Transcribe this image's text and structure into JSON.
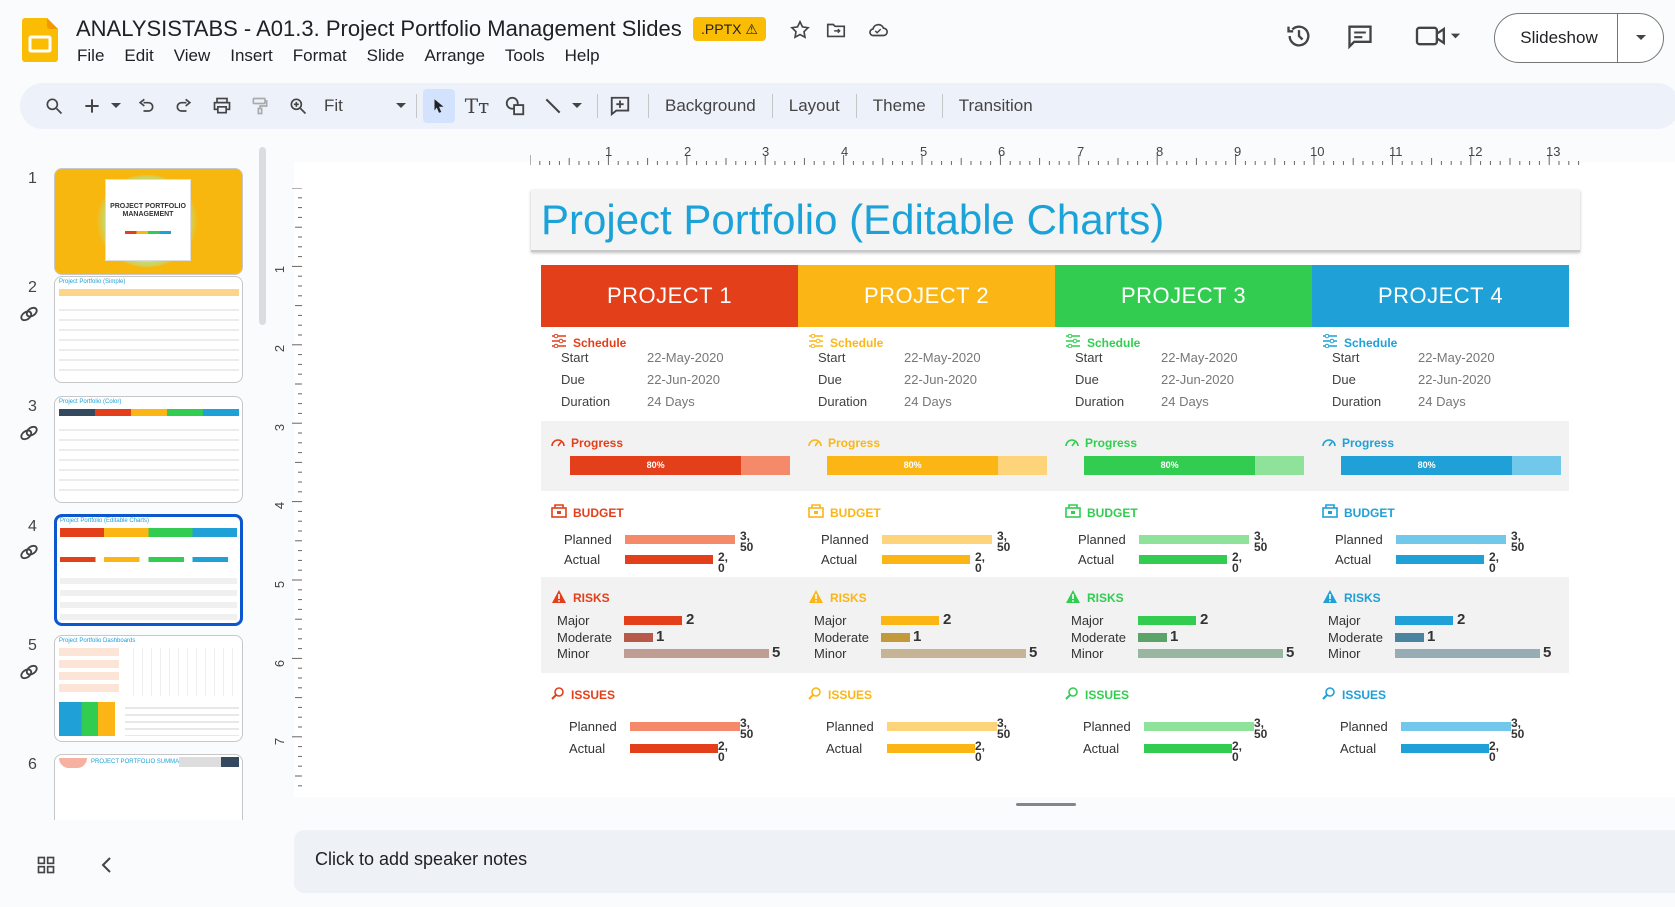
{
  "header": {
    "title": "ANALYSISTABS - A01.3. Project Portfolio Management Slides",
    "badge": ".PPTX ⚠",
    "menu": [
      "File",
      "Edit",
      "View",
      "Insert",
      "Format",
      "Slide",
      "Arrange",
      "Tools",
      "Help"
    ],
    "slideshow_label": "Slideshow"
  },
  "toolbar": {
    "zoom": "Fit",
    "buttons": [
      "Background",
      "Layout",
      "Theme",
      "Transition"
    ]
  },
  "filmstrip": {
    "slides": [
      {
        "num": "1",
        "caption": "PROJECT PORTFOLIO MANAGEMENT"
      },
      {
        "num": "2",
        "caption": "Project Portfolio (Simple)"
      },
      {
        "num": "3",
        "caption": "Project Portfolio (Color)"
      },
      {
        "num": "4",
        "caption": "Project Portfolio (Editable Charts)"
      },
      {
        "num": "5",
        "caption": "Project Portfolio Dashboards"
      },
      {
        "num": "6",
        "caption": "PROJECT PORTFOLIO SUMMARY"
      }
    ]
  },
  "ruler": {
    "h": [
      "1",
      "2",
      "3",
      "4",
      "5",
      "6",
      "7",
      "8",
      "9",
      "10",
      "11",
      "12",
      "13"
    ],
    "v": [
      "1",
      "2",
      "3",
      "4",
      "5",
      "6",
      "7"
    ]
  },
  "slide": {
    "title": "Project Portfolio (Editable Charts)",
    "sections": {
      "schedule": "Schedule",
      "progress": "Progress",
      "budget": "BUDGET",
      "risks": "RISKS",
      "issues": "ISSUES"
    },
    "labels": {
      "start": "Start",
      "due": "Due",
      "duration": "Duration",
      "planned": "Planned",
      "actual": "Actual",
      "major": "Major",
      "moderate": "Moderate",
      "minor": "Minor"
    },
    "projects": [
      {
        "name": "PROJECT 1",
        "color": "#e23f1a",
        "light": "#f48a6a",
        "risk_mod": "#b85a4a",
        "risk_minor": "#bf9d95",
        "start": "22-May-2020",
        "due": "22-Jun-2020",
        "duration": "24 Days",
        "progress": "80%",
        "progress_value": 0.8,
        "budget_planned": "3,50",
        "budget_actual": "2,0",
        "risk_major": "2",
        "risk_moderate": "1",
        "risk_minor_val": "5",
        "issues_planned": "3,50",
        "issues_actual": "2,0"
      },
      {
        "name": "PROJECT 2",
        "color": "#fbb615",
        "light": "#fed47a",
        "risk_mod": "#c29a3c",
        "risk_minor": "#c5b596",
        "start": "22-May-2020",
        "due": "22-Jun-2020",
        "duration": "24 Days",
        "progress": "80%",
        "progress_value": 0.8,
        "budget_planned": "3,50",
        "budget_actual": "2,0",
        "risk_major": "2",
        "risk_moderate": "1",
        "risk_minor_val": "5",
        "issues_planned": "3,50",
        "issues_actual": "2,0"
      },
      {
        "name": "PROJECT 3",
        "color": "#32cd50",
        "light": "#8ee29a",
        "risk_mod": "#5aa46a",
        "risk_minor": "#99b6a0",
        "start": "22-May-2020",
        "due": "22-Jun-2020",
        "duration": "24 Days",
        "progress": "80%",
        "progress_value": 0.8,
        "budget_planned": "3,50",
        "budget_actual": "2,0",
        "risk_major": "2",
        "risk_moderate": "1",
        "risk_minor_val": "5",
        "issues_planned": "3,50",
        "issues_actual": "2,0"
      },
      {
        "name": "PROJECT 4",
        "color": "#1fa0d6",
        "light": "#72c8ea",
        "risk_mod": "#4c84a0",
        "risk_minor": "#98acb6",
        "start": "22-May-2020",
        "due": "22-Jun-2020",
        "duration": "24 Days",
        "progress": "80%",
        "progress_value": 0.8,
        "budget_planned": "3,50",
        "budget_actual": "2,0",
        "risk_major": "2",
        "risk_moderate": "1",
        "risk_minor_val": "5",
        "issues_planned": "3,50",
        "issues_actual": "2,0"
      }
    ]
  },
  "notes": {
    "placeholder": "Click to add speaker notes"
  }
}
